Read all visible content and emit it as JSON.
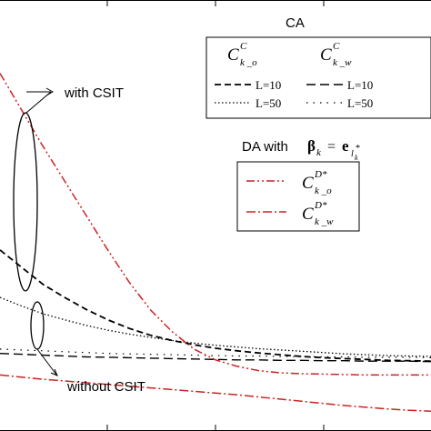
{
  "chart_data": {
    "type": "line",
    "title": "",
    "xlabel": "",
    "ylabel": "",
    "xlim": [
      0,
      1
    ],
    "ylim": [
      0,
      1
    ],
    "grid": false,
    "x": [
      0.0,
      0.05,
      0.1,
      0.15,
      0.2,
      0.25,
      0.3,
      0.35,
      0.4,
      0.45,
      0.5,
      0.55,
      0.6,
      0.65,
      0.7,
      0.75,
      0.8,
      0.85,
      0.9,
      0.95,
      1.0
    ],
    "series": [
      {
        "key": "co_l10",
        "style": "dashed",
        "color": "#000000",
        "values": [
          0.42,
          0.38,
          0.34,
          0.31,
          0.282,
          0.258,
          0.238,
          0.222,
          0.21,
          0.2,
          0.192,
          0.186,
          0.181,
          0.177,
          0.173,
          0.17,
          0.168,
          0.166,
          0.164,
          0.163,
          0.162
        ]
      },
      {
        "key": "co_l50",
        "style": "dotted",
        "color": "#000000",
        "values": [
          0.31,
          0.29,
          0.272,
          0.258,
          0.245,
          0.234,
          0.225,
          0.217,
          0.21,
          0.204,
          0.199,
          0.195,
          0.191,
          0.188,
          0.185,
          0.182,
          0.179,
          0.177,
          0.175,
          0.174,
          0.173
        ]
      },
      {
        "key": "cw_l10",
        "style": "dashed-long",
        "color": "#000000",
        "values": [
          0.18,
          0.178,
          0.176,
          0.174,
          0.172,
          0.171,
          0.17,
          0.169,
          0.168,
          0.167,
          0.166,
          0.165,
          0.165,
          0.164,
          0.164,
          0.163,
          0.163,
          0.162,
          0.162,
          0.162,
          0.161
        ]
      },
      {
        "key": "cw_l50",
        "style": "dotted-sparse",
        "color": "#000000",
        "values": [
          0.19,
          0.188,
          0.186,
          0.184,
          0.182,
          0.18,
          0.179,
          0.178,
          0.177,
          0.176,
          0.175,
          0.174,
          0.174,
          0.173,
          0.173,
          0.172,
          0.172,
          0.171,
          0.171,
          0.171,
          0.17
        ]
      },
      {
        "key": "da_o",
        "style": "dash-dot-dot",
        "color": "#cc2222",
        "values": [
          0.83,
          0.745,
          0.66,
          0.58,
          0.5,
          0.42,
          0.345,
          0.28,
          0.23,
          0.19,
          0.165,
          0.15,
          0.14,
          0.135,
          0.133,
          0.132,
          0.131,
          0.13,
          0.13,
          0.13,
          0.13
        ]
      },
      {
        "key": "da_w",
        "style": "dash-dot",
        "color": "#cc2222",
        "values": [
          0.13,
          0.125,
          0.12,
          0.116,
          0.112,
          0.108,
          0.104,
          0.1,
          0.096,
          0.092,
          0.088,
          0.084,
          0.079,
          0.074,
          0.069,
          0.064,
          0.059,
          0.055,
          0.051,
          0.048,
          0.046
        ]
      }
    ],
    "legend_ca": {
      "title": "CA",
      "col1_symbol": "C",
      "col1_sup": "C",
      "col1_sub": "k _o",
      "col2_symbol": "C",
      "col2_sup": "C",
      "col2_sub": "k _w",
      "rows": [
        {
          "left_key": "co_l10",
          "left_label": "L=10",
          "right_key": "cw_l10",
          "right_label": "L=10"
        },
        {
          "left_key": "co_l50",
          "left_label": "L=50",
          "right_key": "cw_l50",
          "right_label": "L=50"
        }
      ]
    },
    "legend_da": {
      "title_text": "DA with",
      "title_beta": "β",
      "title_beta_sub": "k",
      "title_eq": "=",
      "title_e": "e",
      "title_e_sub": "l",
      "title_e_subsub": "k",
      "title_e_star": "*",
      "entries": [
        {
          "key": "da_o",
          "symbol": "C",
          "sup": "D*",
          "sub": "k _o"
        },
        {
          "key": "da_w",
          "symbol": "C",
          "sup": "D*",
          "sub": "k _w"
        }
      ]
    },
    "annotations": [
      {
        "label": "with CSIT"
      },
      {
        "label": "without CSIT"
      }
    ]
  }
}
